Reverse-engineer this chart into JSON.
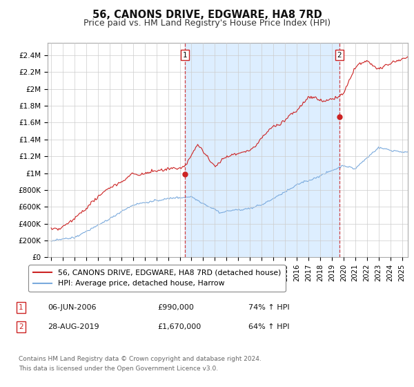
{
  "title": "56, CANONS DRIVE, EDGWARE, HA8 7RD",
  "subtitle": "Price paid vs. HM Land Registry's House Price Index (HPI)",
  "background_color": "#ffffff",
  "plot_bg_color": "#ffffff",
  "grid_color": "#cccccc",
  "line1_color": "#cc2222",
  "line2_color": "#7aaadd",
  "shade_color": "#ddeeff",
  "sale1_year": 2006.46,
  "sale1_price": 990000,
  "sale2_year": 2019.65,
  "sale2_price": 1670000,
  "legend_label1": "56, CANONS DRIVE, EDGWARE, HA8 7RD (detached house)",
  "legend_label2": "HPI: Average price, detached house, Harrow",
  "annotation1_label": "1",
  "annotation2_label": "2",
  "footer": "Contains HM Land Registry data © Crown copyright and database right 2024.\nThis data is licensed under the Open Government Licence v3.0.",
  "title_fontsize": 10.5,
  "subtitle_fontsize": 9
}
